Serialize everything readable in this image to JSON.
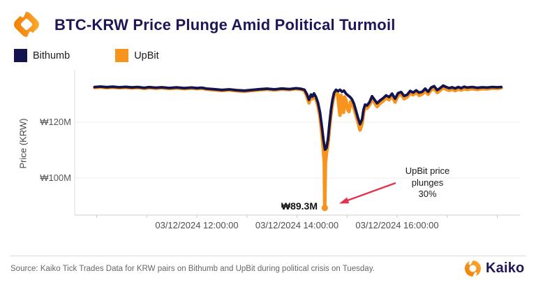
{
  "header": {
    "title": "BTC-KRW Price Plunge Amid Political Turmoil"
  },
  "legend": {
    "items": [
      {
        "label": "Bithumb",
        "color": "#14144e"
      },
      {
        "label": "UpBit",
        "color": "#f7941d"
      }
    ]
  },
  "chart_data": {
    "type": "line",
    "title": "BTC-KRW Price Plunge Amid Political Turmoil",
    "xlabel": "",
    "ylabel": "Price (KRW)",
    "x_unit_hours_on": "03/12/2024",
    "xlim": [
      9.9,
      18.15
    ],
    "ylim": [
      85,
      135
    ],
    "grid": "horizontal-only",
    "legend_position": "top-left",
    "x_ticks": [
      {
        "t": 12,
        "label": "03/12/2024 12:00:00"
      },
      {
        "t": 14,
        "label": "03/12/2024 14:00:00"
      },
      {
        "t": 16,
        "label": "03/12/2024 16:00:00"
      }
    ],
    "minor_tick_hours": [
      10,
      11,
      12,
      13,
      14,
      15,
      16,
      17,
      18
    ],
    "y_ticks": [
      {
        "v": 120,
        "label": "₩120M"
      },
      {
        "v": 100,
        "label": "₩100M"
      }
    ],
    "series": [
      {
        "name": "UpBit",
        "color": "#f7941d",
        "width": 5,
        "points": [
          [
            9.96,
            132.4
          ],
          [
            10.08,
            132.55
          ],
          [
            10.2,
            132.35
          ],
          [
            10.32,
            132.5
          ],
          [
            10.45,
            132.3
          ],
          [
            10.58,
            132.45
          ],
          [
            10.7,
            132.25
          ],
          [
            10.82,
            132.4
          ],
          [
            10.95,
            132.1
          ],
          [
            11.05,
            132.35
          ],
          [
            11.18,
            132.15
          ],
          [
            11.3,
            132.3
          ],
          [
            11.45,
            132.05
          ],
          [
            11.6,
            132.25
          ],
          [
            11.75,
            132.0
          ],
          [
            11.9,
            132.2
          ],
          [
            12.0,
            132.0
          ],
          [
            12.1,
            132.15
          ],
          [
            12.2,
            131.8
          ],
          [
            12.35,
            131.6
          ],
          [
            12.5,
            131.35
          ],
          [
            12.65,
            131.55
          ],
          [
            12.8,
            131.25
          ],
          [
            12.95,
            131.1
          ],
          [
            13.1,
            131.35
          ],
          [
            13.25,
            131.6
          ],
          [
            13.4,
            131.8
          ],
          [
            13.55,
            131.55
          ],
          [
            13.7,
            131.85
          ],
          [
            13.85,
            131.65
          ],
          [
            13.98,
            131.95
          ],
          [
            14.08,
            131.75
          ],
          [
            14.15,
            131.3
          ],
          [
            14.2,
            129.2
          ],
          [
            14.24,
            126.9
          ],
          [
            14.28,
            129.1
          ],
          [
            14.31,
            128.4
          ],
          [
            14.34,
            129.8
          ],
          [
            14.38,
            128.2
          ],
          [
            14.42,
            125.8
          ],
          [
            14.46,
            122.0
          ],
          [
            14.5,
            115.5
          ],
          [
            14.53,
            109.5
          ],
          [
            14.545,
            106.0
          ],
          [
            14.555,
            89.3
          ],
          [
            14.568,
            105.5
          ],
          [
            14.59,
            109.0
          ],
          [
            14.62,
            112.5
          ],
          [
            14.65,
            118.0
          ],
          [
            14.68,
            123.0
          ],
          [
            14.71,
            127.0
          ],
          [
            14.74,
            129.5
          ],
          [
            14.78,
            130.8
          ],
          [
            14.81,
            130.4
          ],
          [
            14.84,
            125.5
          ],
          [
            14.86,
            122.5
          ],
          [
            14.88,
            129.6
          ],
          [
            14.91,
            126.0
          ],
          [
            14.93,
            123.5
          ],
          [
            14.95,
            129.0
          ],
          [
            14.98,
            127.8
          ],
          [
            15.01,
            124.5
          ],
          [
            15.04,
            123.8
          ],
          [
            15.07,
            127.3
          ],
          [
            15.1,
            126.8
          ],
          [
            15.14,
            125.0
          ],
          [
            15.18,
            122.5
          ],
          [
            15.22,
            120.0
          ],
          [
            15.26,
            117.2
          ],
          [
            15.3,
            119.5
          ],
          [
            15.33,
            123.5
          ],
          [
            15.36,
            125.2
          ],
          [
            15.4,
            125.0
          ],
          [
            15.45,
            126.2
          ],
          [
            15.5,
            128.3
          ],
          [
            15.55,
            127.0
          ],
          [
            15.6,
            125.6
          ],
          [
            15.66,
            126.8
          ],
          [
            15.72,
            127.6
          ],
          [
            15.78,
            128.8
          ],
          [
            15.84,
            128.0
          ],
          [
            15.9,
            129.4
          ],
          [
            15.96,
            127.2
          ],
          [
            16.02,
            129.6
          ],
          [
            16.08,
            130.0
          ],
          [
            16.14,
            128.4
          ],
          [
            16.2,
            129.0
          ],
          [
            16.26,
            130.4
          ],
          [
            16.32,
            129.8
          ],
          [
            16.38,
            130.6
          ],
          [
            16.44,
            129.6
          ],
          [
            16.5,
            130.1
          ],
          [
            16.56,
            131.2
          ],
          [
            16.62,
            130.0
          ],
          [
            16.68,
            131.6
          ],
          [
            16.74,
            132.1
          ],
          [
            16.8,
            130.6
          ],
          [
            16.86,
            131.4
          ],
          [
            16.92,
            132.4
          ],
          [
            16.98,
            131.8
          ],
          [
            17.04,
            131.4
          ],
          [
            17.1,
            131.8
          ],
          [
            17.16,
            131.3
          ],
          [
            17.22,
            131.9
          ],
          [
            17.28,
            131.5
          ],
          [
            17.34,
            132.0
          ],
          [
            17.4,
            131.7
          ],
          [
            17.5,
            132.0
          ],
          [
            17.6,
            131.7
          ],
          [
            17.7,
            132.0
          ],
          [
            17.8,
            131.9
          ],
          [
            17.9,
            132.2
          ],
          [
            18.0,
            132.1
          ],
          [
            18.08,
            132.3
          ]
        ]
      },
      {
        "name": "Bithumb",
        "color": "#14144e",
        "width": 3.8,
        "points": [
          [
            9.96,
            132.6
          ],
          [
            10.08,
            132.75
          ],
          [
            10.2,
            132.55
          ],
          [
            10.32,
            132.7
          ],
          [
            10.45,
            132.5
          ],
          [
            10.58,
            132.65
          ],
          [
            10.7,
            132.45
          ],
          [
            10.82,
            132.6
          ],
          [
            10.95,
            132.3
          ],
          [
            11.05,
            132.55
          ],
          [
            11.18,
            132.35
          ],
          [
            11.3,
            132.5
          ],
          [
            11.45,
            132.25
          ],
          [
            11.6,
            132.45
          ],
          [
            11.75,
            132.2
          ],
          [
            11.9,
            132.4
          ],
          [
            12.0,
            132.2
          ],
          [
            12.1,
            132.35
          ],
          [
            12.2,
            132.0
          ],
          [
            12.35,
            131.8
          ],
          [
            12.5,
            131.55
          ],
          [
            12.65,
            131.75
          ],
          [
            12.8,
            131.45
          ],
          [
            12.95,
            131.3
          ],
          [
            13.1,
            131.55
          ],
          [
            13.25,
            131.8
          ],
          [
            13.4,
            132.0
          ],
          [
            13.55,
            131.75
          ],
          [
            13.7,
            132.05
          ],
          [
            13.85,
            131.85
          ],
          [
            13.98,
            132.15
          ],
          [
            14.08,
            131.95
          ],
          [
            14.15,
            131.6
          ],
          [
            14.2,
            130.0
          ],
          [
            14.24,
            128.0
          ],
          [
            14.28,
            129.9
          ],
          [
            14.31,
            129.2
          ],
          [
            14.34,
            130.3
          ],
          [
            14.38,
            129.0
          ],
          [
            14.42,
            127.0
          ],
          [
            14.46,
            123.5
          ],
          [
            14.5,
            118.0
          ],
          [
            14.53,
            113.5
          ],
          [
            14.56,
            110.2
          ],
          [
            14.59,
            110.8
          ],
          [
            14.62,
            114.0
          ],
          [
            14.65,
            119.5
          ],
          [
            14.68,
            124.5
          ],
          [
            14.71,
            128.0
          ],
          [
            14.74,
            130.5
          ],
          [
            14.78,
            131.6
          ],
          [
            14.82,
            131.1
          ],
          [
            14.86,
            131.6
          ],
          [
            14.9,
            130.9
          ],
          [
            14.94,
            131.3
          ],
          [
            14.98,
            130.2
          ],
          [
            15.02,
            129.6
          ],
          [
            15.06,
            129.0
          ],
          [
            15.1,
            128.2
          ],
          [
            15.14,
            126.5
          ],
          [
            15.18,
            124.0
          ],
          [
            15.22,
            121.5
          ],
          [
            15.26,
            119.3
          ],
          [
            15.3,
            121.0
          ],
          [
            15.33,
            124.5
          ],
          [
            15.36,
            126.3
          ],
          [
            15.4,
            126.0
          ],
          [
            15.45,
            127.2
          ],
          [
            15.5,
            129.3
          ],
          [
            15.55,
            128.0
          ],
          [
            15.6,
            126.8
          ],
          [
            15.66,
            127.8
          ],
          [
            15.72,
            128.6
          ],
          [
            15.78,
            129.6
          ],
          [
            15.84,
            129.0
          ],
          [
            15.9,
            130.2
          ],
          [
            15.96,
            128.4
          ],
          [
            16.02,
            130.4
          ],
          [
            16.08,
            130.8
          ],
          [
            16.14,
            129.4
          ],
          [
            16.2,
            129.8
          ],
          [
            16.26,
            131.2
          ],
          [
            16.32,
            130.6
          ],
          [
            16.38,
            131.4
          ],
          [
            16.44,
            130.6
          ],
          [
            16.5,
            130.9
          ],
          [
            16.56,
            132.0
          ],
          [
            16.62,
            130.9
          ],
          [
            16.68,
            132.4
          ],
          [
            16.74,
            132.9
          ],
          [
            16.8,
            131.5
          ],
          [
            16.86,
            132.2
          ],
          [
            16.92,
            133.1
          ],
          [
            16.98,
            132.6
          ],
          [
            17.04,
            132.2
          ],
          [
            17.1,
            132.5
          ],
          [
            17.16,
            132.1
          ],
          [
            17.22,
            132.6
          ],
          [
            17.28,
            132.2
          ],
          [
            17.34,
            132.7
          ],
          [
            17.4,
            132.4
          ],
          [
            17.5,
            132.6
          ],
          [
            17.6,
            132.3
          ],
          [
            17.7,
            132.5
          ],
          [
            17.8,
            132.4
          ],
          [
            17.9,
            132.6
          ],
          [
            18.0,
            132.5
          ],
          [
            18.08,
            132.6
          ]
        ]
      }
    ],
    "min_point": {
      "series": "UpBit",
      "t": 14.555,
      "v": 89.3,
      "label": "₉89.3M"
    },
    "annotations": {
      "min_label": "₩89.3M",
      "note": "UpBit price\nplunges\n30%"
    }
  },
  "footer": {
    "source": "Source: Kaiko Tick Trades Data for KRW pairs on Bithumb and UpBit during political crisis on Tuesday.",
    "brand": "Kaiko"
  }
}
